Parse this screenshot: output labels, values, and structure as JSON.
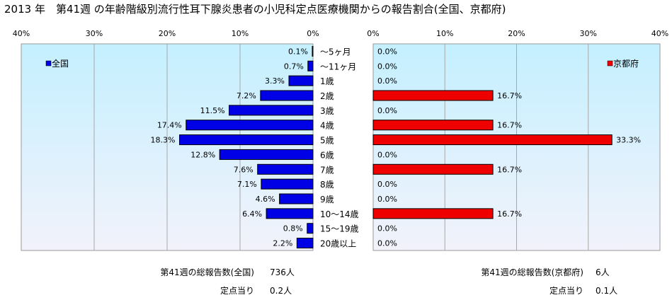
{
  "title": "2013 年　第41週 の年齢階級別流行性耳下腺炎患者の小児科定点医療機関からの報告割合(全国、京都府)",
  "colors": {
    "plot_bg_top": "#c4f0ff",
    "plot_bg_bottom": "#f2f2fb",
    "national_bar": "#0000e6",
    "kyoto_bar": "#ee0000",
    "bar_border": "#000000",
    "grid": "#a8a8a8"
  },
  "chart_data": [
    {
      "type": "bar",
      "orientation": "horizontal",
      "direction": "right-to-left",
      "legend": "全国",
      "legend_position": "top-left",
      "xlim": [
        0,
        40
      ],
      "x_ticks": [
        "40%",
        "30%",
        "20%",
        "10%",
        "0%"
      ],
      "grid": true,
      "categories": [
        "～5ヶ月",
        "～11ヶ月",
        "1歳",
        "2歳",
        "3歳",
        "4歳",
        "5歳",
        "6歳",
        "7歳",
        "8歳",
        "9歳",
        "10～14歳",
        "15～19歳",
        "20歳以上"
      ],
      "values": [
        0.1,
        0.7,
        3.3,
        7.2,
        11.5,
        17.4,
        18.3,
        12.8,
        7.6,
        7.1,
        4.6,
        6.4,
        0.8,
        2.2
      ],
      "labels": [
        "0.1%",
        "0.7%",
        "3.3%",
        "7.2%",
        "11.5%",
        "17.4%",
        "18.3%",
        "12.8%",
        "7.6%",
        "7.1%",
        "4.6%",
        "6.4%",
        "0.8%",
        "2.2%"
      ]
    },
    {
      "type": "bar",
      "orientation": "horizontal",
      "direction": "left-to-right",
      "legend": "京都府",
      "legend_position": "top-right",
      "xlim": [
        0,
        40
      ],
      "x_ticks": [
        "0%",
        "10%",
        "20%",
        "30%",
        "40%"
      ],
      "grid": true,
      "categories": [
        "～5ヶ月",
        "～11ヶ月",
        "1歳",
        "2歳",
        "3歳",
        "4歳",
        "5歳",
        "6歳",
        "7歳",
        "8歳",
        "9歳",
        "10～14歳",
        "15～19歳",
        "20歳以上"
      ],
      "values": [
        0,
        0,
        0,
        16.7,
        0,
        16.7,
        33.3,
        0,
        16.7,
        0,
        0,
        16.7,
        0,
        0
      ],
      "labels": [
        "0.0%",
        "0.0%",
        "0.0%",
        "16.7%",
        "0.0%",
        "16.7%",
        "33.3%",
        "0.0%",
        "16.7%",
        "0.0%",
        "0.0%",
        "16.7%",
        "0.0%",
        "0.0%"
      ]
    }
  ],
  "footer": {
    "national": {
      "total_label": "第41週の総報告数(全国)",
      "total_value": "736人",
      "per_site_label": "定点当り",
      "per_site_value": "0.2人"
    },
    "kyoto": {
      "total_label": "第41週の総報告数(京都府)",
      "total_value": "6人",
      "per_site_label": "定点当り",
      "per_site_value": "0.1人"
    }
  }
}
